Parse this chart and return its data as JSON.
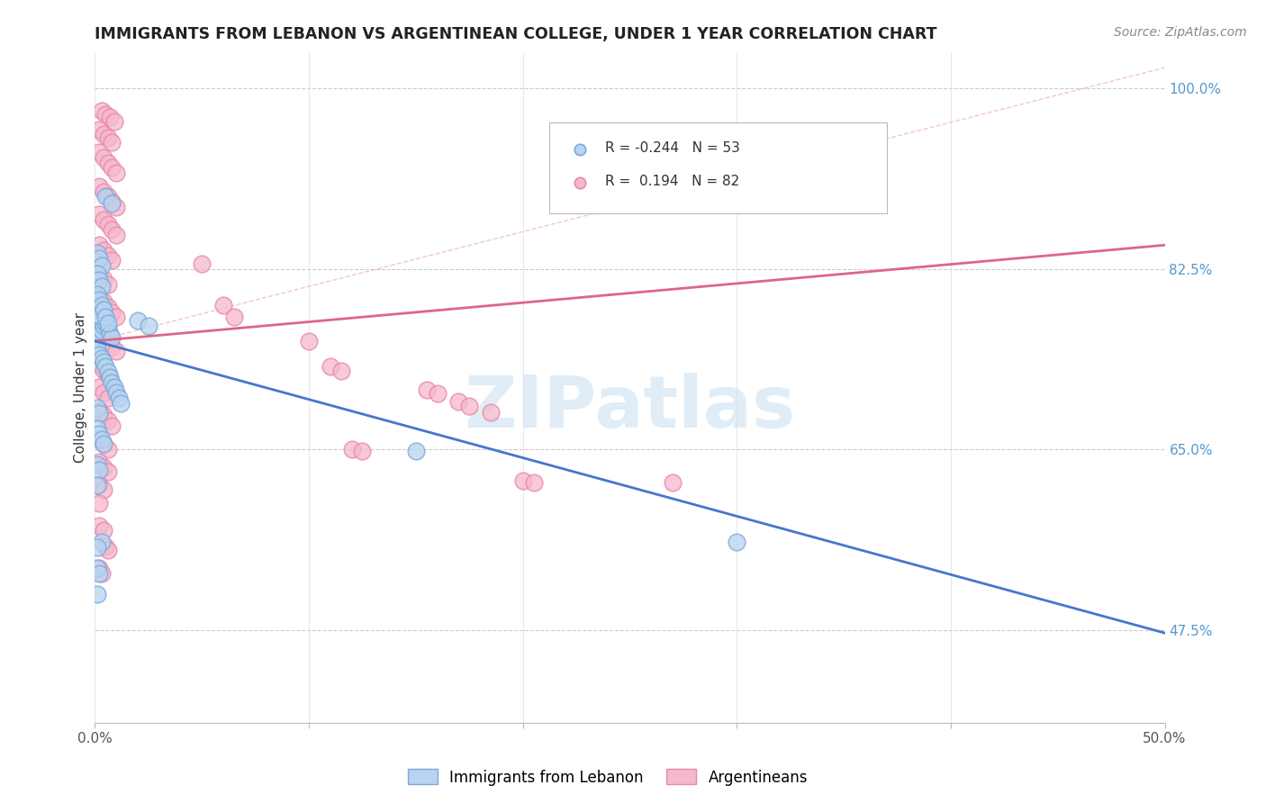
{
  "title": "IMMIGRANTS FROM LEBANON VS ARGENTINEAN COLLEGE, UNDER 1 YEAR CORRELATION CHART",
  "source": "Source: ZipAtlas.com",
  "ylabel": "College, Under 1 year",
  "xmin": 0.0,
  "xmax": 0.5,
  "ymin": 0.385,
  "ymax": 1.035,
  "yticks_right": [
    0.475,
    0.65,
    0.825,
    1.0
  ],
  "yticklabels_right": [
    "47.5%",
    "65.0%",
    "82.5%",
    "100.0%"
  ],
  "blue_scatter": [
    [
      0.001,
      0.755
    ],
    [
      0.002,
      0.76
    ],
    [
      0.003,
      0.765
    ],
    [
      0.004,
      0.77
    ],
    [
      0.005,
      0.772
    ],
    [
      0.006,
      0.768
    ],
    [
      0.007,
      0.762
    ],
    [
      0.008,
      0.758
    ],
    [
      0.001,
      0.748
    ],
    [
      0.002,
      0.742
    ],
    [
      0.003,
      0.738
    ],
    [
      0.004,
      0.735
    ],
    [
      0.005,
      0.73
    ],
    [
      0.006,
      0.725
    ],
    [
      0.007,
      0.72
    ],
    [
      0.008,
      0.715
    ],
    [
      0.009,
      0.71
    ],
    [
      0.01,
      0.705
    ],
    [
      0.011,
      0.7
    ],
    [
      0.012,
      0.695
    ],
    [
      0.001,
      0.84
    ],
    [
      0.002,
      0.835
    ],
    [
      0.003,
      0.828
    ],
    [
      0.001,
      0.82
    ],
    [
      0.002,
      0.814
    ],
    [
      0.003,
      0.808
    ],
    [
      0.001,
      0.8
    ],
    [
      0.002,
      0.795
    ],
    [
      0.001,
      0.785
    ],
    [
      0.002,
      0.78
    ],
    [
      0.003,
      0.79
    ],
    [
      0.004,
      0.785
    ],
    [
      0.005,
      0.778
    ],
    [
      0.006,
      0.772
    ],
    [
      0.001,
      0.69
    ],
    [
      0.002,
      0.685
    ],
    [
      0.001,
      0.67
    ],
    [
      0.002,
      0.665
    ],
    [
      0.003,
      0.66
    ],
    [
      0.004,
      0.655
    ],
    [
      0.001,
      0.635
    ],
    [
      0.002,
      0.63
    ],
    [
      0.001,
      0.615
    ],
    [
      0.003,
      0.56
    ],
    [
      0.001,
      0.555
    ],
    [
      0.001,
      0.535
    ],
    [
      0.002,
      0.53
    ],
    [
      0.001,
      0.51
    ],
    [
      0.005,
      0.895
    ],
    [
      0.008,
      0.888
    ],
    [
      0.02,
      0.775
    ],
    [
      0.025,
      0.77
    ],
    [
      0.15,
      0.648
    ],
    [
      0.3,
      0.56
    ]
  ],
  "pink_scatter": [
    [
      0.003,
      0.978
    ],
    [
      0.005,
      0.975
    ],
    [
      0.007,
      0.972
    ],
    [
      0.009,
      0.968
    ],
    [
      0.002,
      0.96
    ],
    [
      0.004,
      0.956
    ],
    [
      0.006,
      0.952
    ],
    [
      0.008,
      0.948
    ],
    [
      0.002,
      0.938
    ],
    [
      0.004,
      0.933
    ],
    [
      0.006,
      0.928
    ],
    [
      0.008,
      0.923
    ],
    [
      0.01,
      0.918
    ],
    [
      0.002,
      0.905
    ],
    [
      0.004,
      0.9
    ],
    [
      0.006,
      0.895
    ],
    [
      0.008,
      0.89
    ],
    [
      0.01,
      0.885
    ],
    [
      0.002,
      0.878
    ],
    [
      0.004,
      0.873
    ],
    [
      0.006,
      0.868
    ],
    [
      0.008,
      0.863
    ],
    [
      0.01,
      0.858
    ],
    [
      0.002,
      0.848
    ],
    [
      0.004,
      0.843
    ],
    [
      0.006,
      0.838
    ],
    [
      0.008,
      0.833
    ],
    [
      0.002,
      0.82
    ],
    [
      0.004,
      0.815
    ],
    [
      0.006,
      0.81
    ],
    [
      0.002,
      0.798
    ],
    [
      0.004,
      0.793
    ],
    [
      0.006,
      0.788
    ],
    [
      0.008,
      0.783
    ],
    [
      0.01,
      0.778
    ],
    [
      0.002,
      0.765
    ],
    [
      0.004,
      0.76
    ],
    [
      0.006,
      0.755
    ],
    [
      0.008,
      0.75
    ],
    [
      0.01,
      0.745
    ],
    [
      0.002,
      0.732
    ],
    [
      0.004,
      0.727
    ],
    [
      0.006,
      0.722
    ],
    [
      0.002,
      0.71
    ],
    [
      0.004,
      0.705
    ],
    [
      0.006,
      0.7
    ],
    [
      0.002,
      0.688
    ],
    [
      0.004,
      0.683
    ],
    [
      0.006,
      0.678
    ],
    [
      0.008,
      0.673
    ],
    [
      0.002,
      0.66
    ],
    [
      0.004,
      0.655
    ],
    [
      0.006,
      0.65
    ],
    [
      0.002,
      0.638
    ],
    [
      0.004,
      0.633
    ],
    [
      0.006,
      0.628
    ],
    [
      0.002,
      0.616
    ],
    [
      0.004,
      0.611
    ],
    [
      0.002,
      0.598
    ],
    [
      0.002,
      0.576
    ],
    [
      0.004,
      0.572
    ],
    [
      0.005,
      0.556
    ],
    [
      0.006,
      0.552
    ],
    [
      0.002,
      0.535
    ],
    [
      0.003,
      0.53
    ],
    [
      0.05,
      0.83
    ],
    [
      0.06,
      0.79
    ],
    [
      0.065,
      0.778
    ],
    [
      0.1,
      0.755
    ],
    [
      0.11,
      0.73
    ],
    [
      0.115,
      0.726
    ],
    [
      0.155,
      0.708
    ],
    [
      0.16,
      0.704
    ],
    [
      0.17,
      0.696
    ],
    [
      0.175,
      0.692
    ],
    [
      0.185,
      0.686
    ],
    [
      0.2,
      0.62
    ],
    [
      0.205,
      0.618
    ],
    [
      0.27,
      0.618
    ],
    [
      0.12,
      0.65
    ],
    [
      0.125,
      0.648
    ]
  ],
  "blue_line": {
    "x0": 0.0,
    "y0": 0.755,
    "x1": 0.5,
    "y1": 0.472
  },
  "pink_line": {
    "x0": 0.0,
    "y0": 0.755,
    "x1": 0.5,
    "y1": 0.848
  },
  "pink_dash_line": {
    "x0": 0.0,
    "y0": 0.755,
    "x1": 0.5,
    "y1": 1.02
  },
  "watermark": "ZIPatlas",
  "background_color": "#ffffff"
}
